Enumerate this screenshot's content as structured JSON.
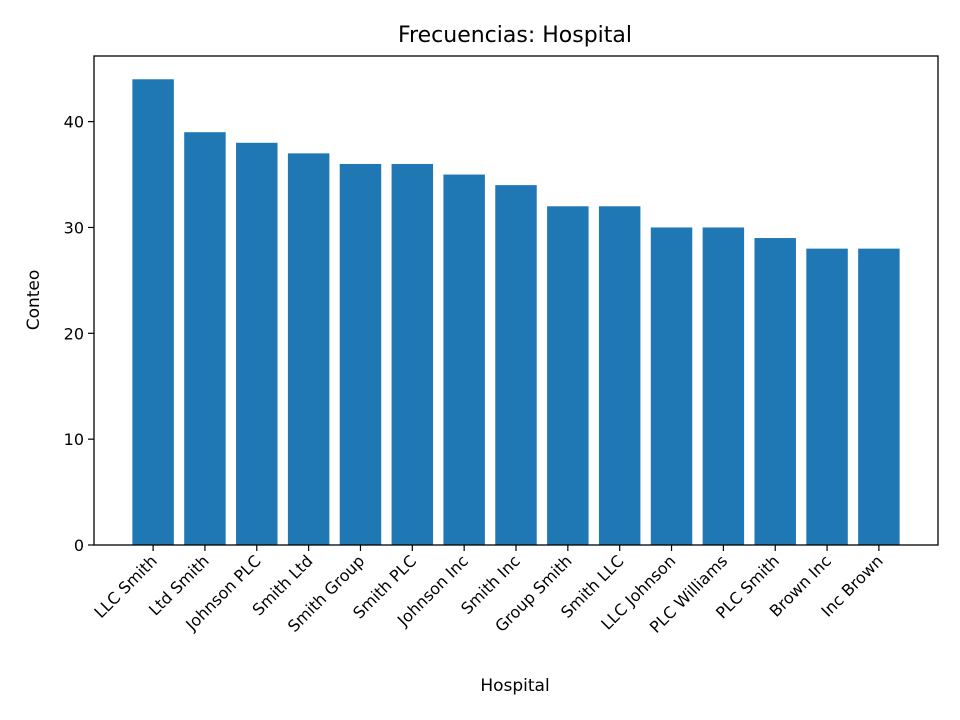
{
  "chart_data": {
    "type": "bar",
    "title": "Frecuencias: Hospital",
    "xlabel": "Hospital",
    "ylabel": "Conteo",
    "categories": [
      "LLC Smith",
      "Ltd Smith",
      "Johnson PLC",
      "Smith Ltd",
      "Smith Group",
      "Smith PLC",
      "Johnson Inc",
      "Smith Inc",
      "Group Smith",
      "Smith LLC",
      "LLC Johnson",
      "PLC Williams",
      "PLC Smith",
      "Brown Inc",
      "Inc Brown"
    ],
    "values": [
      44,
      39,
      38,
      37,
      36,
      36,
      35,
      34,
      32,
      32,
      30,
      30,
      29,
      28,
      28
    ],
    "ylim": [
      0,
      46.2
    ],
    "yticks": [
      0,
      10,
      20,
      30,
      40
    ],
    "grid": false,
    "bar_color": "#1f77b4"
  }
}
